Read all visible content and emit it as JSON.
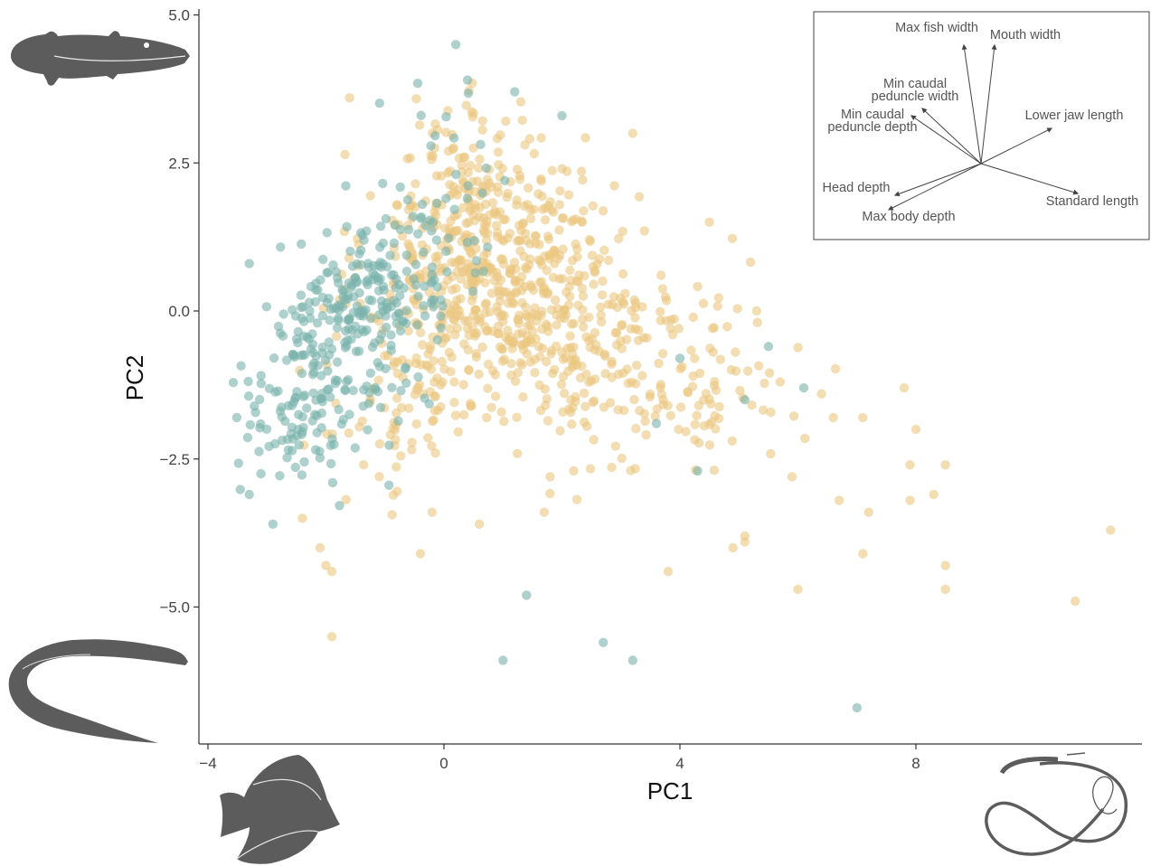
{
  "chart_data": {
    "type": "scatter",
    "title": "",
    "xlabel": "PC1",
    "ylabel": "PC2",
    "xlim": [
      -4.2,
      11.8
    ],
    "ylim": [
      -7.4,
      5.1
    ],
    "xticks": [
      -4,
      0,
      4,
      8
    ],
    "yticks": [
      -5.0,
      -2.5,
      0.0,
      2.5,
      5.0
    ],
    "xtick_labels": [
      "−4",
      "0",
      "4",
      "8"
    ],
    "ytick_labels": [
      "−5.0",
      "−2.5",
      "0.0",
      "2.5",
      "5.0"
    ],
    "grid": false,
    "legend": "none",
    "colors": {
      "teal": "#79b2ab",
      "gold": "#ebc67f",
      "axis": "#333333",
      "silhouette": "#5c5c5c"
    },
    "series": [
      {
        "color": "teal",
        "clusters": [
          {
            "cx": -2.0,
            "cy": -1.0,
            "sx": 0.6,
            "sy": 0.85,
            "n": 140
          },
          {
            "cx": -1.2,
            "cy": 0.2,
            "sx": 0.55,
            "sy": 0.55,
            "n": 130
          },
          {
            "cx": -0.3,
            "cy": 1.5,
            "sx": 0.7,
            "sy": 0.9,
            "n": 70
          },
          {
            "cx": -2.6,
            "cy": -2.0,
            "sx": 0.5,
            "sy": 0.5,
            "n": 50
          }
        ],
        "points": [
          {
            "x": 0.2,
            "y": 4.5
          },
          {
            "x": 0.4,
            "y": 3.9
          },
          {
            "x": 1.2,
            "y": 3.7
          },
          {
            "x": 2.0,
            "y": 3.3
          },
          {
            "x": -3.3,
            "y": 0.8
          },
          {
            "x": 4.0,
            "y": -0.8
          },
          {
            "x": 5.5,
            "y": -0.6
          },
          {
            "x": 5.1,
            "y": -1.5
          },
          {
            "x": 4.3,
            "y": -2.7
          },
          {
            "x": 1.4,
            "y": -4.8
          },
          {
            "x": 2.7,
            "y": -5.6
          },
          {
            "x": 3.2,
            "y": -5.9
          },
          {
            "x": 1.0,
            "y": -5.9
          },
          {
            "x": 7.0,
            "y": -6.7
          },
          {
            "x": 3.6,
            "y": -1.9
          },
          {
            "x": 6.1,
            "y": -1.3
          },
          {
            "x": -2.9,
            "y": -3.6
          },
          {
            "x": -3.3,
            "y": -3.1
          }
        ]
      },
      {
        "color": "gold",
        "clusters": [
          {
            "cx": 0.5,
            "cy": 0.5,
            "sx": 0.9,
            "sy": 1.1,
            "n": 400
          },
          {
            "cx": 2.0,
            "cy": 0.2,
            "sx": 1.0,
            "sy": 1.0,
            "n": 220
          },
          {
            "cx": 3.8,
            "cy": -1.2,
            "sx": 1.0,
            "sy": 0.8,
            "n": 140
          },
          {
            "cx": 0.6,
            "cy": 2.3,
            "sx": 0.8,
            "sy": 0.6,
            "n": 90
          },
          {
            "cx": -0.8,
            "cy": -1.8,
            "sx": 0.8,
            "sy": 0.7,
            "n": 60
          }
        ],
        "points": [
          {
            "x": -1.6,
            "y": 3.6
          },
          {
            "x": 3.2,
            "y": 3.0
          },
          {
            "x": 4.5,
            "y": 1.5
          },
          {
            "x": 6.4,
            "y": -1.4
          },
          {
            "x": 7.1,
            "y": -1.8
          },
          {
            "x": 7.8,
            "y": -1.3
          },
          {
            "x": 8.0,
            "y": -2.0
          },
          {
            "x": 8.5,
            "y": -2.6
          },
          {
            "x": 7.9,
            "y": -2.6
          },
          {
            "x": 8.3,
            "y": -3.1
          },
          {
            "x": 7.9,
            "y": -3.2
          },
          {
            "x": 7.2,
            "y": -3.4
          },
          {
            "x": 6.7,
            "y": -3.2
          },
          {
            "x": 5.9,
            "y": -2.8
          },
          {
            "x": 5.1,
            "y": -3.8
          },
          {
            "x": 5.1,
            "y": -3.9
          },
          {
            "x": 4.9,
            "y": -4.0
          },
          {
            "x": 7.1,
            "y": -4.1
          },
          {
            "x": 8.5,
            "y": -4.3
          },
          {
            "x": 8.5,
            "y": -4.7
          },
          {
            "x": 6.0,
            "y": -4.7
          },
          {
            "x": 10.7,
            "y": -4.9
          },
          {
            "x": 11.3,
            "y": -3.7
          },
          {
            "x": 3.8,
            "y": -4.4
          },
          {
            "x": -2.1,
            "y": -4.0
          },
          {
            "x": -2.0,
            "y": -4.3
          },
          {
            "x": -1.9,
            "y": -4.4
          },
          {
            "x": -1.9,
            "y": -5.5
          },
          {
            "x": 0.6,
            "y": -3.6
          },
          {
            "x": -0.4,
            "y": -4.1
          },
          {
            "x": 1.7,
            "y": -3.4
          },
          {
            "x": -2.4,
            "y": -3.5
          },
          {
            "x": 6.6,
            "y": -1.8
          },
          {
            "x": 5.7,
            "y": -1.2
          },
          {
            "x": 5.3,
            "y": 0.0
          },
          {
            "x": 2.2,
            "y": -2.7
          },
          {
            "x": 1.8,
            "y": -2.8
          },
          {
            "x": -0.2,
            "y": -3.4
          }
        ]
      }
    ],
    "inset": {
      "title": "",
      "vectors": [
        {
          "label": "Max fish width",
          "dx": -0.18,
          "dy": 1.0,
          "tx": 1036,
          "ty": 35,
          "anchor": "middle"
        },
        {
          "label": "Mouth width",
          "dx": 0.12,
          "dy": 1.0,
          "tx": 1134,
          "ty": 43,
          "anchor": "middle"
        },
        {
          "label": "Min caudal\npeduncle width",
          "dx": -0.78,
          "dy": 0.55,
          "tx": 1012,
          "ty": 97,
          "anchor": "middle"
        },
        {
          "label": "Min caudal\npeduncle depth",
          "dx": -0.88,
          "dy": 0.42,
          "tx": 965,
          "ty": 131,
          "anchor": "middle"
        },
        {
          "label": "Lower jaw length",
          "dx": 0.95,
          "dy": 0.31,
          "tx": 1188,
          "ty": 132,
          "anchor": "middle"
        },
        {
          "label": "Head depth",
          "dx": -1.0,
          "dy": -0.25,
          "tx": 947,
          "ty": 212,
          "anchor": "middle"
        },
        {
          "label": "Max body depth",
          "dx": -1.0,
          "dy": -0.5,
          "tx": 1005,
          "ty": 244,
          "anchor": "middle"
        },
        {
          "label": "Standard length",
          "dx": 1.0,
          "dy": -0.3,
          "tx": 1208,
          "ty": 227,
          "anchor": "middle"
        }
      ]
    },
    "silhouettes": [
      "pufferfish-silhouette",
      "eel-silhouette",
      "tang-silhouette",
      "gulper-eel-silhouette"
    ]
  }
}
